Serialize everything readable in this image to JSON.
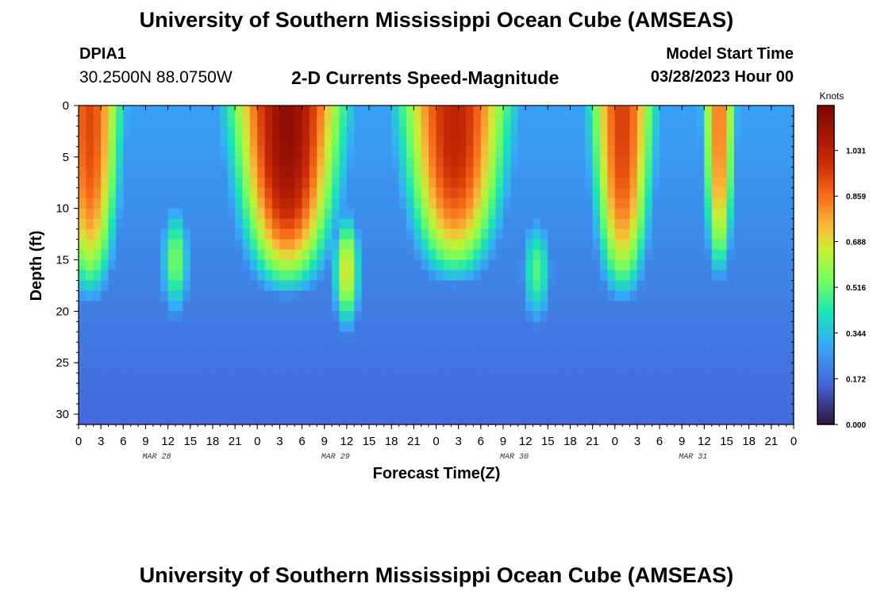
{
  "header": {
    "title": "University of Southern Mississippi Ocean Cube (AMSEAS)",
    "station_id": "DPIA1",
    "station_coords": "30.2500N  88.0750W",
    "subtitle": "2-D Currents Speed-Magnitude",
    "model_start_label": "Model Start Time",
    "model_start_value": "03/28/2023 Hour 00"
  },
  "footer": {
    "title": "University of Southern Mississippi Ocean Cube (AMSEAS)"
  },
  "colors": {
    "background": "#ffffff",
    "axis": "#000000"
  },
  "chart_data": {
    "type": "heatmap",
    "title": "2-D Currents Speed-Magnitude",
    "xlabel": "Forecast Time(Z)",
    "ylabel": "Depth (ft)",
    "x_ticks": [
      "0",
      "3",
      "6",
      "9",
      "12",
      "15",
      "18",
      "21",
      "0",
      "3",
      "6",
      "9",
      "12",
      "15",
      "18",
      "21",
      "0",
      "3",
      "6",
      "9",
      "12",
      "15",
      "18",
      "21",
      "0",
      "3",
      "6",
      "9",
      "12",
      "15",
      "18",
      "21",
      "0"
    ],
    "x_range_hours": [
      0,
      96
    ],
    "date_labels": [
      {
        "label": "MAR 28",
        "hour": 10.5
      },
      {
        "label": "MAR 29",
        "hour": 34.5
      },
      {
        "label": "MAR 30",
        "hour": 58.5
      },
      {
        "label": "MAR 31",
        "hour": 82.5
      }
    ],
    "y_ticks": [
      "0",
      "5",
      "10",
      "15",
      "20",
      "25",
      "30"
    ],
    "y_range_ft": [
      0,
      31
    ],
    "colorbar": {
      "label": "Knots",
      "range": [
        0,
        1.2
      ],
      "ticks": [
        "1.031",
        "0.859",
        "0.688",
        "0.516",
        "0.344",
        "0.172",
        "0.000"
      ],
      "tick_values": [
        1.031,
        0.859,
        0.688,
        0.516,
        0.344,
        0.172,
        0.0
      ]
    },
    "bands": [
      {
        "center": 1.5,
        "width": 3.0,
        "surface": 0.93,
        "bottom_depth": 21
      },
      {
        "center": 13.5,
        "width": 2.6,
        "surface": 0.12,
        "bottom_depth": 0
      },
      {
        "center": 13.0,
        "width": 2.2,
        "mid": 0.55,
        "mid_depth": 15
      },
      {
        "center": 28.0,
        "width": 5.0,
        "surface": 1.15,
        "bottom_depth": 20
      },
      {
        "center": 36.0,
        "width": 2.0,
        "mid": 0.7,
        "mid_depth": 16
      },
      {
        "center": 50.5,
        "width": 5.0,
        "surface": 1.02,
        "bottom_depth": 19
      },
      {
        "center": 61.5,
        "width": 2.3,
        "mid": 0.5,
        "mid_depth": 16
      },
      {
        "center": 73.0,
        "width": 3.0,
        "surface": 0.95,
        "bottom_depth": 21
      },
      {
        "center": 86.0,
        "width": 1.6,
        "surface": 0.85,
        "bottom_depth": 19
      }
    ]
  }
}
